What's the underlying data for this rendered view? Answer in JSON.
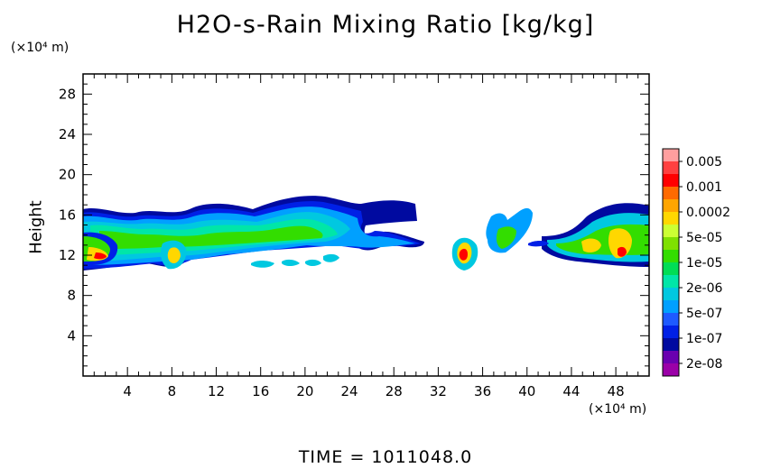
{
  "chart_data": {
    "type": "heatmap",
    "title": "H2O-s-Rain Mixing Ratio [kg/kg]",
    "ylabel": "Height",
    "y_unit": "(×10⁴ m)",
    "x_unit": "(×10⁴ m)",
    "footer": "TIME  =  1011048.0",
    "xlim": [
      0,
      51
    ],
    "ylim": [
      0,
      30
    ],
    "x_ticks": [
      4,
      8,
      12,
      16,
      20,
      24,
      28,
      32,
      36,
      40,
      44,
      48
    ],
    "y_ticks": [
      4,
      8,
      12,
      16,
      20,
      24,
      28
    ],
    "legend": {
      "labels": [
        "0.005",
        "0.001",
        "0.0002",
        "5e-05",
        "1e-05",
        "2e-06",
        "5e-07",
        "1e-07",
        "2e-08"
      ],
      "colors": [
        "#ff9f9f",
        "#ff4040",
        "#ff0000",
        "#ff6a00",
        "#ffa500",
        "#ffd700",
        "#ccff33",
        "#7fe000",
        "#33dd00",
        "#00dd55",
        "#00e6a8",
        "#00c8e0",
        "#00a0ff",
        "#1e5aff",
        "#0020e6",
        "#000aa0",
        "#6a00b0",
        "#9b00a8"
      ]
    },
    "features": [
      {
        "x": 1.5,
        "y": 13.8,
        "w": 3.5,
        "h": 2.8,
        "level": 3
      },
      {
        "x": 2.5,
        "y": 11.8,
        "w": 1.4,
        "h": 0.6,
        "level": 8
      },
      {
        "x": 8.5,
        "y": 12.2,
        "w": 1.2,
        "h": 1.8,
        "level": 6
      },
      {
        "x": 14,
        "y": 14.5,
        "w": 7,
        "h": 2.5,
        "level": 3
      },
      {
        "x": 21.5,
        "y": 15.5,
        "w": 3.5,
        "h": 3.5,
        "level": 4
      },
      {
        "x": 34,
        "y": 12.2,
        "w": 1.5,
        "h": 2.5,
        "level": 8
      },
      {
        "x": 38.5,
        "y": 13.5,
        "w": 1.5,
        "h": 2.0,
        "level": 3
      },
      {
        "x": 45.5,
        "y": 12.8,
        "w": 2,
        "h": 1.8,
        "level": 6
      },
      {
        "x": 48.2,
        "y": 12.8,
        "w": 2,
        "h": 2.8,
        "level": 6
      }
    ]
  }
}
